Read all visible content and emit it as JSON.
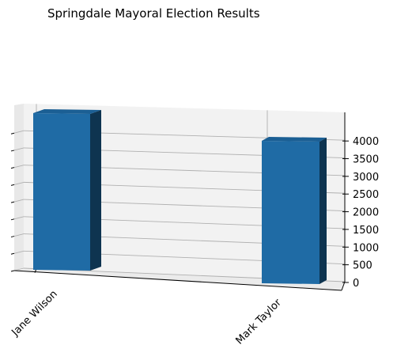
{
  "chart_data": {
    "type": "bar",
    "title": "Springdale Mayoral Election Results",
    "xlabel": "",
    "ylabel": "",
    "categories": [
      "Jane Wilson",
      "Mark Taylor"
    ],
    "values": [
      4420,
      3800
    ],
    "ylim": [
      0,
      4500
    ],
    "yticks": [
      0,
      500,
      1000,
      1500,
      2000,
      2500,
      3000,
      3500,
      4000
    ],
    "bar_color": "#1f6ba5",
    "grid": true,
    "projection": "3d"
  }
}
